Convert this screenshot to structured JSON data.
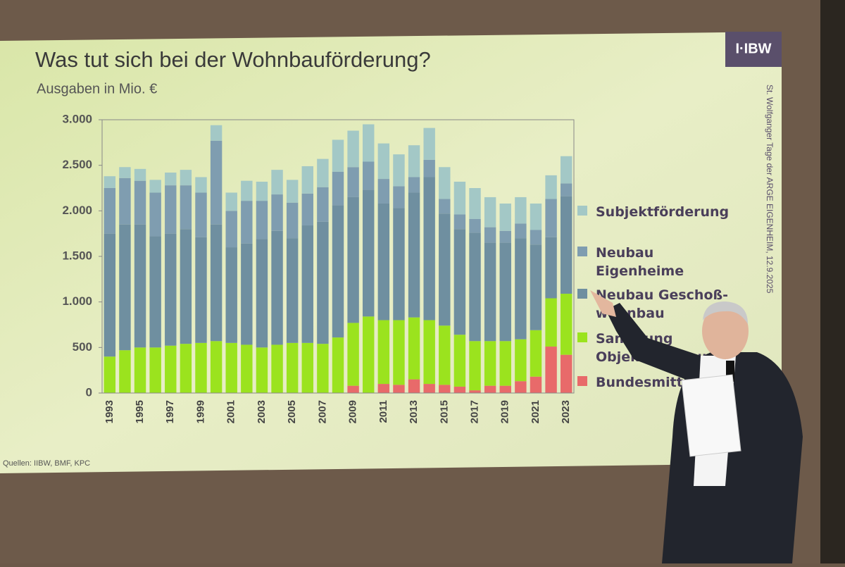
{
  "chart_data": {
    "type": "stacked_bar",
    "title": "Was tut sich bei der Wohnbauförderung?",
    "subtitle": "Ausgaben in Mio. €",
    "source": "Quellen: IIBW, BMF, KPC",
    "logo": "I·IBW",
    "side_note": "St. Wolfganger Tage der ARGE EIGENHEIM, 12.9.2025",
    "categories": [
      "1993",
      null,
      "1995",
      null,
      "1997",
      null,
      "1999",
      null,
      "2001",
      null,
      "2003",
      null,
      "2005",
      null,
      "2007",
      null,
      "2009",
      null,
      "2011",
      null,
      "2013",
      null,
      "2015",
      null,
      "2017",
      null,
      "2019",
      null,
      "2021",
      null,
      "2023"
    ],
    "ylim": [
      0,
      3000
    ],
    "yticks": [
      0,
      500,
      {
        "value": 1000,
        "label": "1.000"
      },
      {
        "value": 1500,
        "label": "1.500"
      },
      {
        "value": 2000,
        "label": "2.000"
      },
      {
        "value": 2500,
        "label": "2.500"
      },
      {
        "value": 3000,
        "label": "3.000"
      }
    ],
    "grid": false,
    "legend": "right",
    "series": [
      {
        "name": "Bundesmittel",
        "color": "#e86a6a",
        "values": [
          0,
          0,
          0,
          0,
          0,
          0,
          0,
          0,
          0,
          0,
          0,
          0,
          0,
          0,
          0,
          0,
          80,
          0,
          100,
          90,
          150,
          100,
          90,
          70,
          30,
          80,
          80,
          130,
          180,
          510,
          420
        ]
      },
      {
        "name": "Sanierung Objektförderung",
        "color": "#9be31e",
        "values": [
          400,
          470,
          500,
          500,
          520,
          540,
          550,
          570,
          550,
          530,
          500,
          530,
          550,
          550,
          540,
          610,
          690,
          840,
          700,
          710,
          680,
          700,
          650,
          570,
          540,
          490,
          490,
          460,
          510,
          530,
          670
        ]
      },
      {
        "name": "Neubau Geschoß-wohnbau",
        "color": "#6f8fa0",
        "values": [
          1350,
          1380,
          1350,
          1220,
          1230,
          1260,
          1160,
          1280,
          1050,
          1110,
          1190,
          1250,
          1150,
          1290,
          1340,
          1450,
          1380,
          1390,
          1280,
          1230,
          1370,
          1570,
          1230,
          1160,
          1190,
          1080,
          1080,
          1110,
          940,
          670,
          1070
        ]
      },
      {
        "name": "Neubau Eigenheime",
        "color": "#7f9db0",
        "values": [
          500,
          510,
          480,
          480,
          530,
          480,
          490,
          920,
          400,
          470,
          420,
          400,
          390,
          350,
          380,
          370,
          330,
          310,
          270,
          240,
          170,
          190,
          160,
          160,
          150,
          170,
          130,
          160,
          160,
          420,
          140
        ]
      },
      {
        "name": "Subjektförderung",
        "color": "#a3c8c6",
        "values": [
          130,
          120,
          130,
          140,
          140,
          170,
          170,
          170,
          200,
          220,
          210,
          270,
          250,
          300,
          310,
          350,
          400,
          410,
          390,
          350,
          350,
          350,
          350,
          360,
          340,
          330,
          300,
          290,
          290,
          260,
          300
        ]
      }
    ]
  }
}
